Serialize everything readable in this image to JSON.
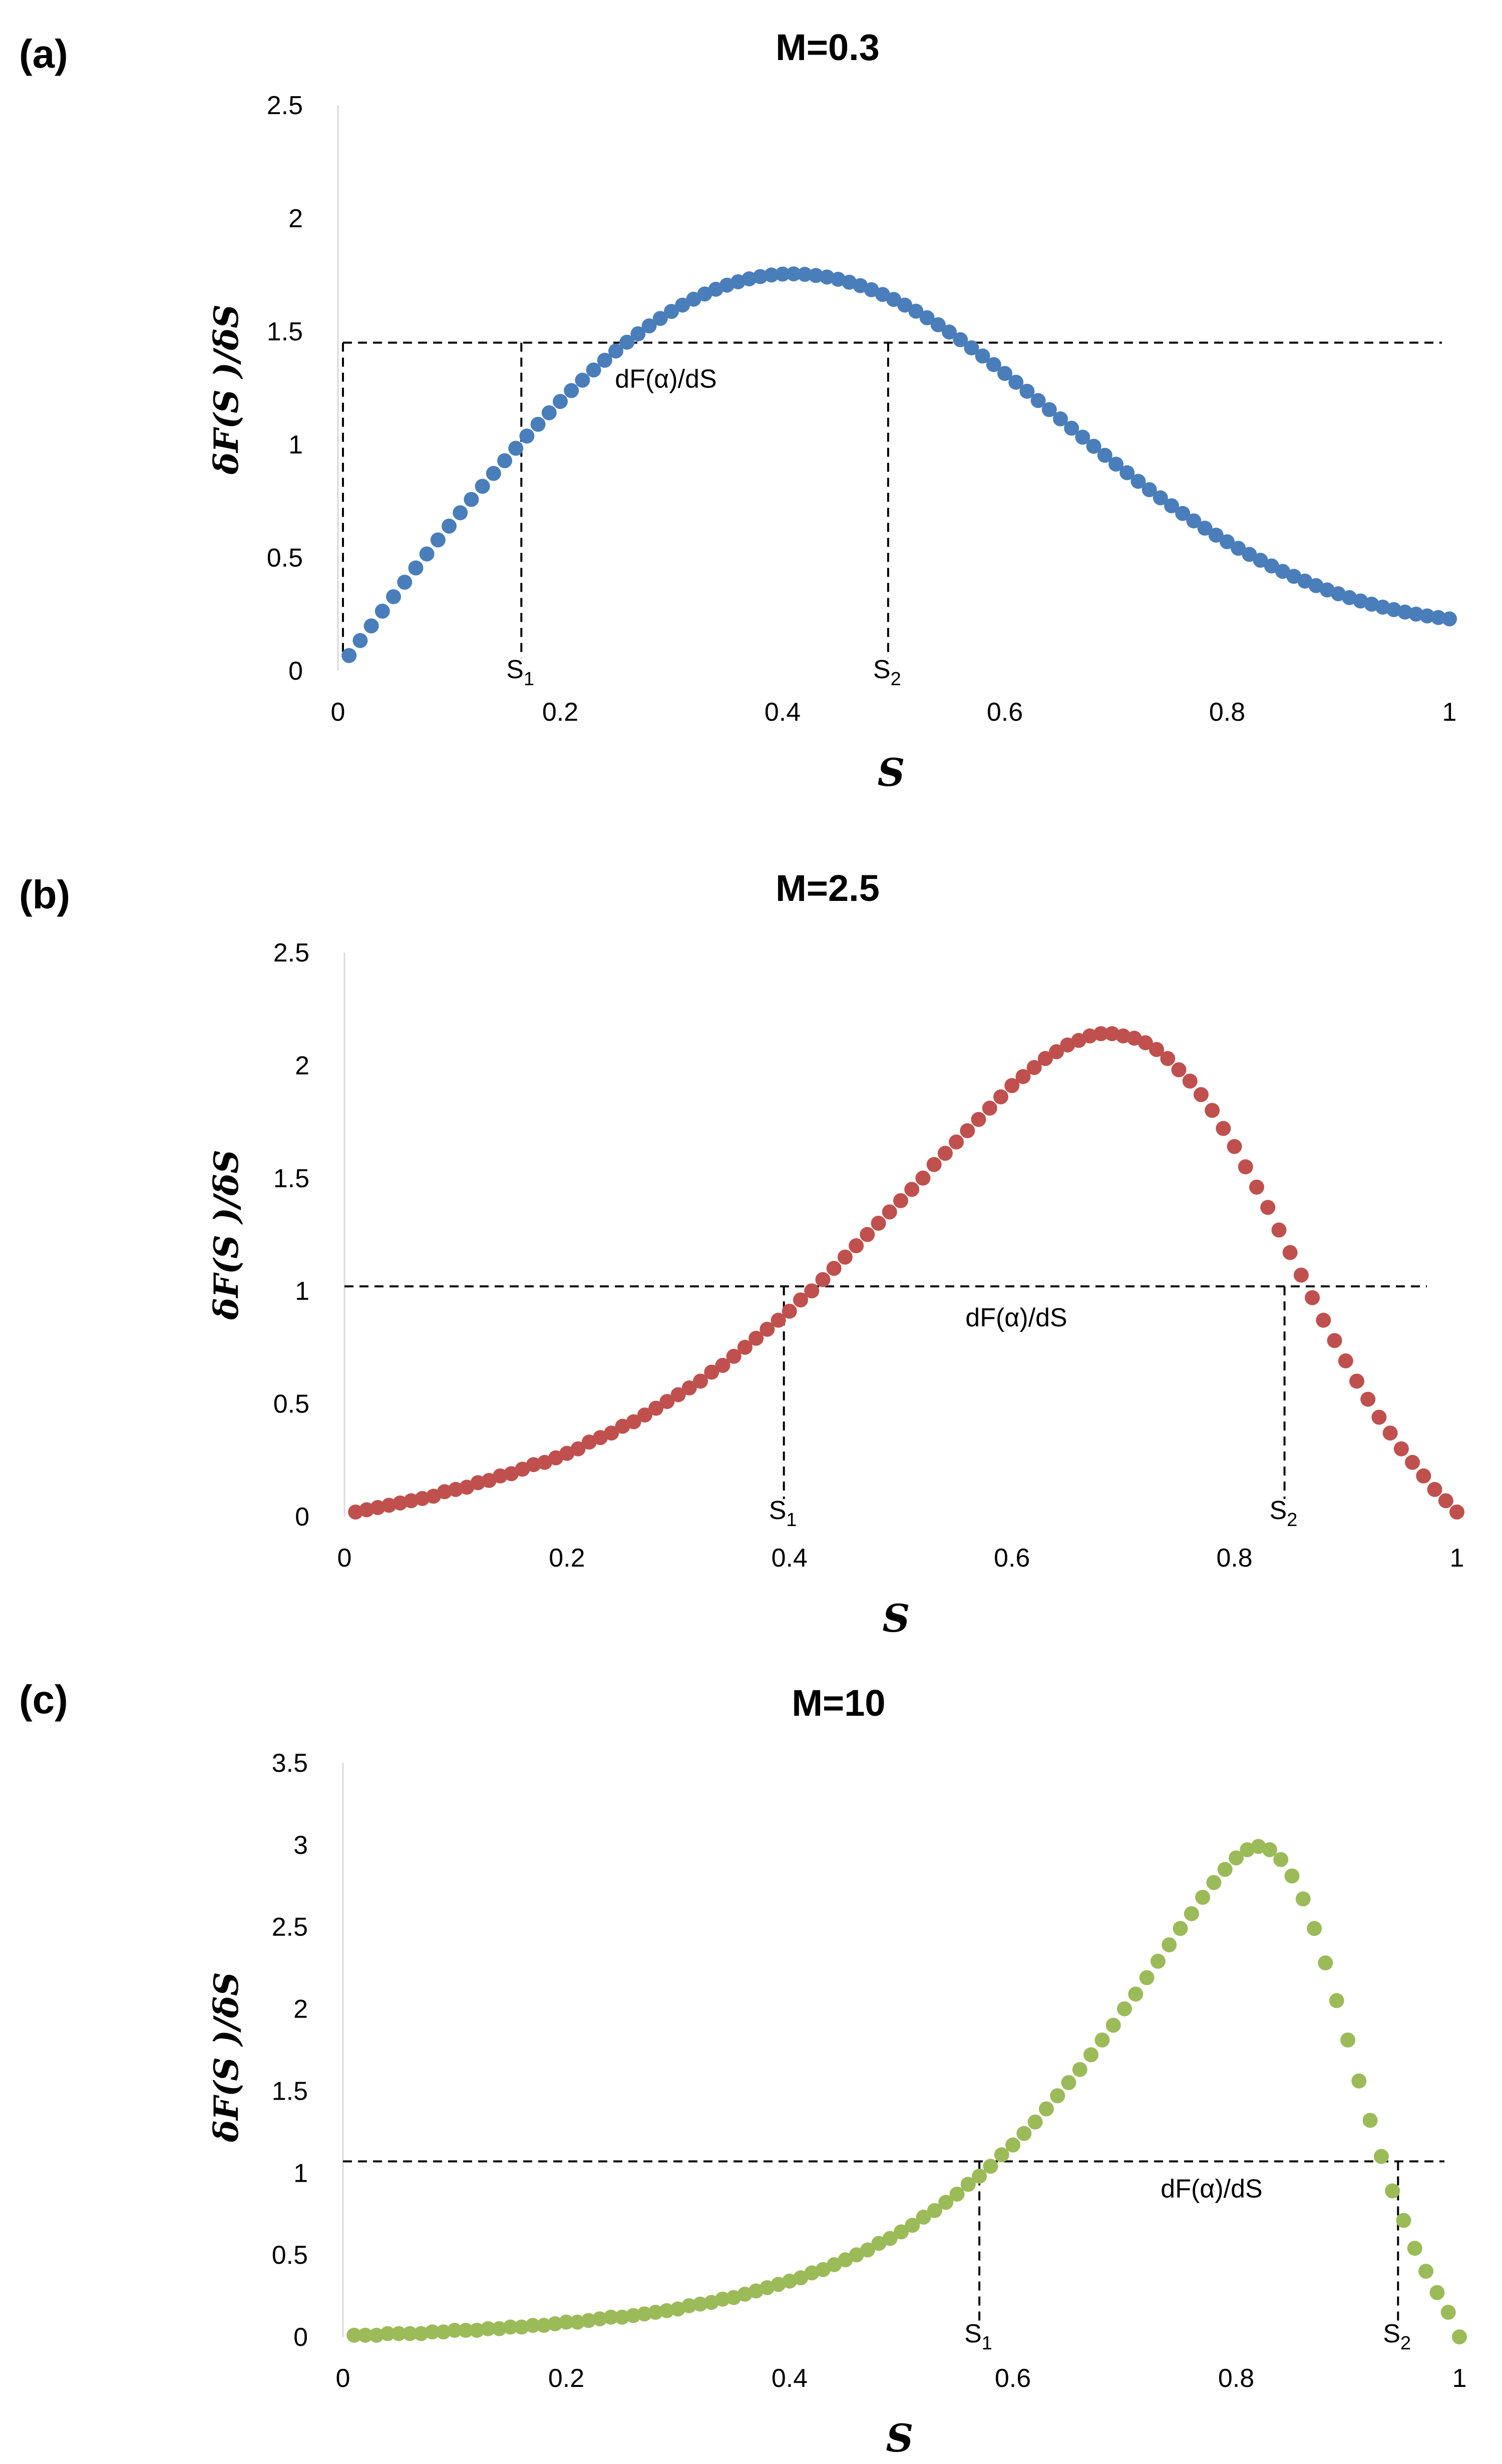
{
  "chart_data": [
    {
      "type": "scatter",
      "panel": "(a)",
      "title": "M=0.3",
      "xlabel": "S",
      "ylabel": "δF(S )/δS",
      "xlim": [
        0,
        1
      ],
      "ylim": [
        0,
        2.5
      ],
      "xticks": [
        "0",
        "0.2",
        "0.4",
        "0.6",
        "0.8",
        "1"
      ],
      "yticks": [
        "0",
        "0.5",
        "1",
        "1.5",
        "2",
        "2.5"
      ],
      "color": "#4a7ebb",
      "series": [
        {
          "name": "dF/dS",
          "x": [
            0.01,
            0.02,
            0.03,
            0.04,
            0.05,
            0.06,
            0.07,
            0.08,
            0.09,
            0.1,
            0.11,
            0.12,
            0.13,
            0.14,
            0.15,
            0.16,
            0.17,
            0.18,
            0.19,
            0.2,
            0.21,
            0.22,
            0.23,
            0.24,
            0.25,
            0.26,
            0.27,
            0.28,
            0.29,
            0.3,
            0.31,
            0.32,
            0.33,
            0.34,
            0.35,
            0.36,
            0.37,
            0.38,
            0.39,
            0.4,
            0.41,
            0.42,
            0.43,
            0.44,
            0.45,
            0.46,
            0.47,
            0.48,
            0.49,
            0.5,
            0.51,
            0.52,
            0.53,
            0.54,
            0.55,
            0.56,
            0.57,
            0.58,
            0.59,
            0.6,
            0.61,
            0.62,
            0.63,
            0.64,
            0.65,
            0.66,
            0.67,
            0.68,
            0.69,
            0.7,
            0.71,
            0.72,
            0.73,
            0.74,
            0.75,
            0.76,
            0.77,
            0.78,
            0.79,
            0.8,
            0.81,
            0.82,
            0.83,
            0.84,
            0.85,
            0.86,
            0.87,
            0.88,
            0.89,
            0.9,
            0.91,
            0.92,
            0.93,
            0.94,
            0.95,
            0.96,
            0.97,
            0.98,
            0.99,
            1.0
          ],
          "values": [
            0.067,
            0.133,
            0.198,
            0.263,
            0.327,
            0.391,
            0.454,
            0.516,
            0.578,
            0.639,
            0.698,
            0.757,
            0.815,
            0.872,
            0.928,
            0.983,
            1.037,
            1.089,
            1.14,
            1.19,
            1.238,
            1.284,
            1.329,
            1.372,
            1.413,
            1.452,
            1.489,
            1.524,
            1.557,
            1.588,
            1.616,
            1.642,
            1.665,
            1.686,
            1.704,
            1.719,
            1.732,
            1.742,
            1.749,
            1.753,
            1.754,
            1.752,
            1.747,
            1.74,
            1.73,
            1.717,
            1.702,
            1.684,
            1.663,
            1.641,
            1.616,
            1.589,
            1.56,
            1.529,
            1.497,
            1.463,
            1.427,
            1.391,
            1.353,
            1.314,
            1.275,
            1.235,
            1.194,
            1.154,
            1.113,
            1.072,
            1.032,
            0.992,
            0.952,
            0.913,
            0.875,
            0.837,
            0.8,
            0.764,
            0.729,
            0.695,
            0.662,
            0.63,
            0.599,
            0.57,
            0.541,
            0.514,
            0.488,
            0.463,
            0.439,
            0.417,
            0.396,
            0.376,
            0.357,
            0.34,
            0.323,
            0.308,
            0.294,
            0.281,
            0.27,
            0.259,
            0.25,
            0.242,
            0.235,
            0.229
          ]
        }
      ],
      "reference_line": {
        "label": "dF(α)/dS",
        "y": 1.45
      },
      "markers": [
        {
          "label": "S",
          "sub": "1",
          "x": 0.165
        },
        {
          "label": "S",
          "sub": "2",
          "x": 0.495
        }
      ]
    },
    {
      "type": "scatter",
      "panel": "(b)",
      "title": "M=2.5",
      "xlabel": "S",
      "ylabel": "δF(S )/δS",
      "xlim": [
        0,
        1
      ],
      "ylim": [
        0,
        2.5
      ],
      "xticks": [
        "0",
        "0.2",
        "0.4",
        "0.6",
        "0.8",
        "1"
      ],
      "yticks": [
        "0",
        "0.5",
        "1",
        "1.5",
        "2",
        "2.5"
      ],
      "color": "#c0504d",
      "series": [
        {
          "name": "dF/dS",
          "x": [
            0.01,
            0.02,
            0.03,
            0.04,
            0.05,
            0.06,
            0.07,
            0.08,
            0.09,
            0.1,
            0.11,
            0.12,
            0.13,
            0.14,
            0.15,
            0.16,
            0.17,
            0.18,
            0.19,
            0.2,
            0.21,
            0.22,
            0.23,
            0.24,
            0.25,
            0.26,
            0.27,
            0.28,
            0.29,
            0.3,
            0.31,
            0.32,
            0.33,
            0.34,
            0.35,
            0.36,
            0.37,
            0.38,
            0.39,
            0.4,
            0.41,
            0.42,
            0.43,
            0.44,
            0.45,
            0.46,
            0.47,
            0.48,
            0.49,
            0.5,
            0.51,
            0.52,
            0.53,
            0.54,
            0.55,
            0.56,
            0.57,
            0.58,
            0.59,
            0.6,
            0.61,
            0.62,
            0.63,
            0.64,
            0.65,
            0.66,
            0.67,
            0.68,
            0.69,
            0.7,
            0.71,
            0.72,
            0.73,
            0.74,
            0.75,
            0.76,
            0.77,
            0.78,
            0.79,
            0.8,
            0.81,
            0.82,
            0.83,
            0.84,
            0.85,
            0.86,
            0.87,
            0.88,
            0.89,
            0.9,
            0.91,
            0.92,
            0.93,
            0.94,
            0.95,
            0.96,
            0.97,
            0.98,
            0.99,
            1.0
          ],
          "values": [
            0.02,
            0.03,
            0.04,
            0.05,
            0.06,
            0.07,
            0.08,
            0.09,
            0.11,
            0.12,
            0.13,
            0.15,
            0.16,
            0.18,
            0.19,
            0.21,
            0.23,
            0.24,
            0.26,
            0.28,
            0.3,
            0.33,
            0.35,
            0.37,
            0.4,
            0.42,
            0.45,
            0.48,
            0.51,
            0.54,
            0.57,
            0.6,
            0.64,
            0.67,
            0.71,
            0.75,
            0.79,
            0.83,
            0.87,
            0.91,
            0.96,
            1.0,
            1.05,
            1.1,
            1.15,
            1.2,
            1.25,
            1.3,
            1.35,
            1.4,
            1.45,
            1.5,
            1.56,
            1.61,
            1.66,
            1.71,
            1.76,
            1.81,
            1.86,
            1.91,
            1.95,
            1.99,
            2.03,
            2.06,
            2.09,
            2.11,
            2.13,
            2.14,
            2.14,
            2.13,
            2.12,
            2.1,
            2.07,
            2.03,
            1.98,
            1.93,
            1.87,
            1.8,
            1.72,
            1.64,
            1.55,
            1.46,
            1.37,
            1.27,
            1.17,
            1.07,
            0.97,
            0.87,
            0.78,
            0.69,
            0.6,
            0.52,
            0.44,
            0.37,
            0.3,
            0.24,
            0.18,
            0.12,
            0.07,
            0.02
          ]
        }
      ],
      "reference_line": {
        "label": "dF(α)/dS",
        "y": 1.02
      },
      "markers": [
        {
          "label": "S",
          "sub": "1",
          "x": 0.395
        },
        {
          "label": "S",
          "sub": "2",
          "x": 0.845
        }
      ]
    },
    {
      "type": "scatter",
      "panel": "(c)",
      "title": "M=10",
      "xlabel": "S",
      "ylabel": "δF(S )/δS",
      "xlim": [
        0,
        1
      ],
      "ylim": [
        0,
        3.5
      ],
      "xticks": [
        "0",
        "0.2",
        "0.4",
        "0.6",
        "0.8",
        "1"
      ],
      "yticks": [
        "0",
        "0.5",
        "1",
        "1.5",
        "2",
        "2.5",
        "3",
        "3.5"
      ],
      "color": "#9bbb59",
      "series": [
        {
          "name": "dF/dS",
          "x": [
            0.01,
            0.02,
            0.03,
            0.04,
            0.05,
            0.06,
            0.07,
            0.08,
            0.09,
            0.1,
            0.11,
            0.12,
            0.13,
            0.14,
            0.15,
            0.16,
            0.17,
            0.18,
            0.19,
            0.2,
            0.21,
            0.22,
            0.23,
            0.24,
            0.25,
            0.26,
            0.27,
            0.28,
            0.29,
            0.3,
            0.31,
            0.32,
            0.33,
            0.34,
            0.35,
            0.36,
            0.37,
            0.38,
            0.39,
            0.4,
            0.41,
            0.42,
            0.43,
            0.44,
            0.45,
            0.46,
            0.47,
            0.48,
            0.49,
            0.5,
            0.51,
            0.52,
            0.53,
            0.54,
            0.55,
            0.56,
            0.57,
            0.58,
            0.59,
            0.6,
            0.61,
            0.62,
            0.63,
            0.64,
            0.65,
            0.66,
            0.67,
            0.68,
            0.69,
            0.7,
            0.71,
            0.72,
            0.73,
            0.74,
            0.75,
            0.76,
            0.77,
            0.78,
            0.79,
            0.8,
            0.81,
            0.82,
            0.83,
            0.84,
            0.85,
            0.86,
            0.87,
            0.88,
            0.89,
            0.9,
            0.91,
            0.92,
            0.93,
            0.94,
            0.95,
            0.96,
            0.97,
            0.98,
            0.99,
            1.0
          ],
          "values": [
            0.01,
            0.01,
            0.01,
            0.02,
            0.02,
            0.02,
            0.02,
            0.03,
            0.03,
            0.04,
            0.04,
            0.04,
            0.05,
            0.05,
            0.06,
            0.06,
            0.07,
            0.07,
            0.08,
            0.09,
            0.09,
            0.1,
            0.11,
            0.12,
            0.12,
            0.13,
            0.14,
            0.15,
            0.16,
            0.17,
            0.19,
            0.2,
            0.21,
            0.23,
            0.24,
            0.26,
            0.28,
            0.3,
            0.32,
            0.34,
            0.36,
            0.39,
            0.41,
            0.44,
            0.47,
            0.5,
            0.53,
            0.57,
            0.6,
            0.64,
            0.68,
            0.73,
            0.77,
            0.82,
            0.87,
            0.93,
            0.98,
            1.04,
            1.11,
            1.17,
            1.24,
            1.31,
            1.39,
            1.47,
            1.55,
            1.63,
            1.72,
            1.81,
            1.9,
            2.0,
            2.09,
            2.19,
            2.29,
            2.39,
            2.49,
            2.58,
            2.68,
            2.77,
            2.85,
            2.92,
            2.97,
            2.99,
            2.97,
            2.91,
            2.81,
            2.67,
            2.49,
            2.28,
            2.05,
            1.81,
            1.56,
            1.32,
            1.1,
            0.89,
            0.71,
            0.54,
            0.4,
            0.27,
            0.15,
            0.0
          ]
        }
      ],
      "reference_line": {
        "label": "dF(α)/dS",
        "y": 1.07
      },
      "markers": [
        {
          "label": "S",
          "sub": "1",
          "x": 0.57
        },
        {
          "label": "S",
          "sub": "2",
          "x": 0.945
        }
      ]
    }
  ]
}
